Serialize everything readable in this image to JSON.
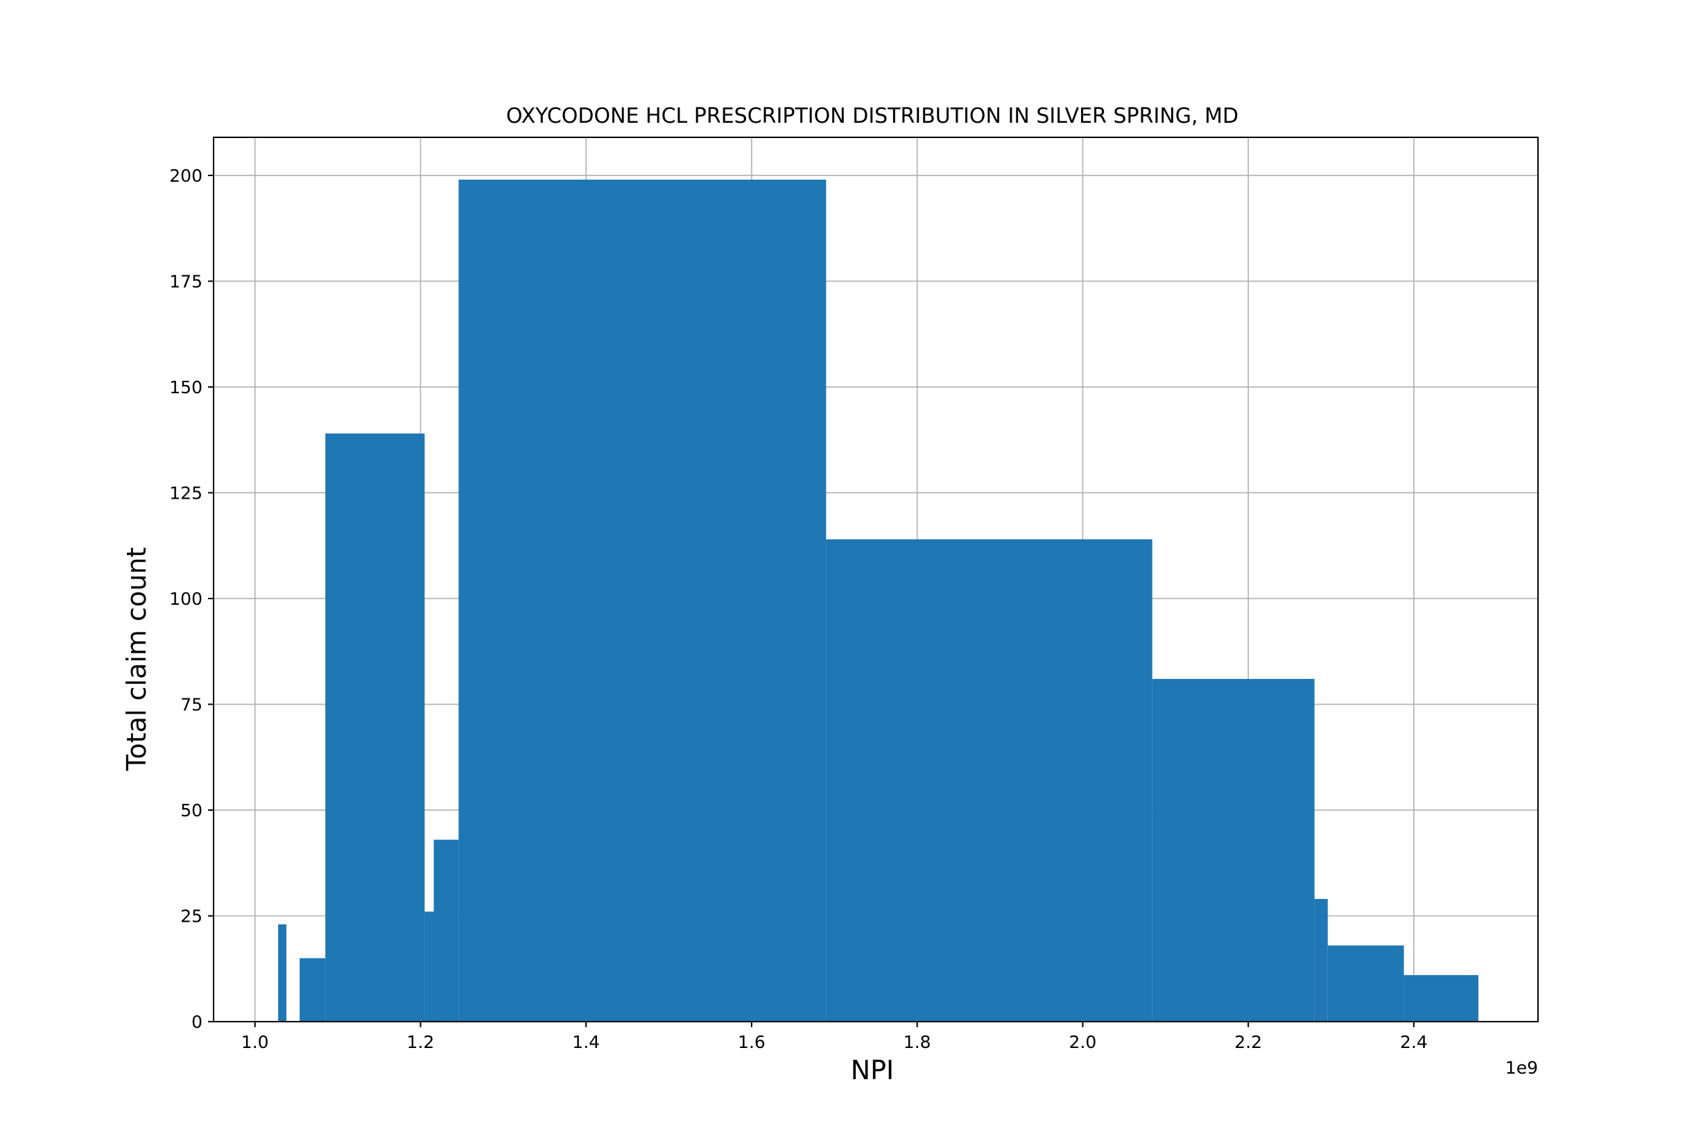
{
  "chart_data": {
    "type": "bar",
    "title": "OXYCODONE HCL PRESCRIPTION DISTRIBUTION IN SILVER SPRING, MD",
    "xlabel": "NPI",
    "ylabel": "Total claim count",
    "x_offset_label": "1e9",
    "xlim": [
      0.95,
      2.55
    ],
    "ylim": [
      0,
      209
    ],
    "xticks": [
      1.0,
      1.2,
      1.4,
      1.6,
      1.8,
      2.0,
      2.2,
      2.4
    ],
    "xtick_labels": [
      "1.0",
      "1.2",
      "1.4",
      "1.6",
      "1.8",
      "2.0",
      "2.2",
      "2.4"
    ],
    "yticks": [
      0,
      25,
      50,
      75,
      100,
      125,
      150,
      175,
      200
    ],
    "ytick_labels": [
      "0",
      "25",
      "50",
      "75",
      "100",
      "125",
      "150",
      "175",
      "200"
    ],
    "grid": true,
    "bar_color": "#1f77b4",
    "series": [
      {
        "bars": [
          {
            "x_start": 1.028,
            "x_end": 1.038,
            "value": 23
          },
          {
            "x_start": 1.054,
            "x_end": 1.085,
            "value": 15
          },
          {
            "x_start": 1.085,
            "x_end": 1.205,
            "value": 139
          },
          {
            "x_start": 1.205,
            "x_end": 1.216,
            "value": 26
          },
          {
            "x_start": 1.216,
            "x_end": 1.246,
            "value": 43
          },
          {
            "x_start": 1.246,
            "x_end": 1.69,
            "value": 199
          },
          {
            "x_start": 1.69,
            "x_end": 2.084,
            "value": 114
          },
          {
            "x_start": 2.084,
            "x_end": 2.28,
            "value": 81
          },
          {
            "x_start": 2.28,
            "x_end": 2.296,
            "value": 29
          },
          {
            "x_start": 2.296,
            "x_end": 2.388,
            "value": 18
          },
          {
            "x_start": 2.388,
            "x_end": 2.478,
            "value": 11
          }
        ]
      }
    ]
  }
}
